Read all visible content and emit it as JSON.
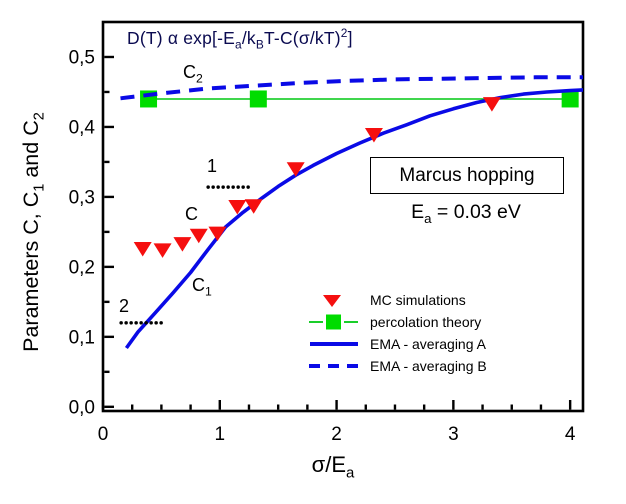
{
  "formula": {
    "p1": "D(T) α exp[-E",
    "s1": "a",
    "p2": "/k",
    "s2": "B",
    "p3": "T-C(σ/kT)",
    "sup": "2",
    "p4": "]"
  },
  "y_axis": {
    "t1": "Parameters C, C",
    "s1": "1",
    "t2": " and C",
    "s2": "2"
  },
  "x_axis": {
    "t1": "σ/E",
    "s1": "a"
  },
  "plot_labels": {
    "c2_t": "C",
    "c2_s": "2",
    "c": "C",
    "c1_t": "C",
    "c1_s": "1",
    "n1": "1",
    "n2": "2"
  },
  "info_box": {
    "title": "Marcus hopping",
    "ea_t1": "E",
    "ea_s1": "a",
    "ea_t2": " = 0.03 eV"
  },
  "legend": {
    "items": [
      {
        "label": "MC simulations",
        "symbol": "triangle-down"
      },
      {
        "label": "percolation theory",
        "symbol": "square-with-line"
      },
      {
        "label": "EMA - averaging A",
        "symbol": "solid-line"
      },
      {
        "label": "EMA - averaging B",
        "symbol": "dashed-line"
      }
    ]
  },
  "colors": {
    "mc": "#f50f0f",
    "perc": "#00dc00",
    "perc_line": "#00c812",
    "ema": "#0a0ae6",
    "frame": "#000000",
    "formula": "#0a0a50"
  },
  "chart_data": {
    "type": "line+scatter",
    "title": "D(T) α exp[-Ea/kBT-C(σ/kT)2]",
    "xlabel": "σ/Ea",
    "ylabel": "Parameters C, C1 and C2",
    "xlim": [
      0,
      4.11
    ],
    "ylim": [
      -0.006,
      0.55
    ],
    "grid": false,
    "legend_position": "lower right",
    "x_major_ticks": [
      {
        "v": 0,
        "label": "0"
      },
      {
        "v": 1,
        "label": "1"
      },
      {
        "v": 2,
        "label": "2"
      },
      {
        "v": 3,
        "label": "3"
      },
      {
        "v": 4,
        "label": "4"
      }
    ],
    "y_major_ticks": [
      {
        "v": 0.0,
        "label": "0,0"
      },
      {
        "v": 0.1,
        "label": "0,1"
      },
      {
        "v": 0.2,
        "label": "0,2"
      },
      {
        "v": 0.3,
        "label": "0,3"
      },
      {
        "v": 0.4,
        "label": "0,4"
      },
      {
        "v": 0.5,
        "label": "0,5"
      }
    ],
    "x_minor_step": 0.25,
    "y_minor_step": 0.05,
    "series": [
      {
        "name": "percolation theory",
        "type": "line+scatter",
        "marker": "square",
        "marker_size": 17,
        "color": "#00dc00",
        "line_color": "#00c812",
        "line_width": 1.6,
        "points": [
          [
            0.39,
            0.44
          ],
          [
            1.33,
            0.44
          ],
          [
            4.0,
            0.44
          ]
        ]
      },
      {
        "name": "EMA - averaging B",
        "type": "line",
        "dash": "14 9",
        "color": "#0a0ae6",
        "width": 4,
        "points": [
          [
            0.15,
            0.441
          ],
          [
            0.5,
            0.448
          ],
          [
            0.9,
            0.455
          ],
          [
            1.3,
            0.459
          ],
          [
            1.7,
            0.463
          ],
          [
            2.1,
            0.466
          ],
          [
            2.5,
            0.468
          ],
          [
            2.9,
            0.469
          ],
          [
            3.3,
            0.47
          ],
          [
            3.7,
            0.471
          ],
          [
            4.11,
            0.471
          ]
        ]
      },
      {
        "name": "EMA - averaging A",
        "type": "line",
        "dash": null,
        "color": "#0a0ae6",
        "width": 3.6,
        "points": [
          [
            0.2,
            0.084
          ],
          [
            0.3,
            0.107
          ],
          [
            0.45,
            0.135
          ],
          [
            0.6,
            0.163
          ],
          [
            0.75,
            0.192
          ],
          [
            0.9,
            0.225
          ],
          [
            1.05,
            0.257
          ],
          [
            1.2,
            0.278
          ],
          [
            1.35,
            0.297
          ],
          [
            1.5,
            0.315
          ],
          [
            1.65,
            0.331
          ],
          [
            1.8,
            0.345
          ],
          [
            2.0,
            0.362
          ],
          [
            2.2,
            0.377
          ],
          [
            2.4,
            0.391
          ],
          [
            2.6,
            0.403
          ],
          [
            2.8,
            0.416
          ],
          [
            3.0,
            0.426
          ],
          [
            3.2,
            0.435
          ],
          [
            3.4,
            0.442
          ],
          [
            3.6,
            0.447
          ],
          [
            3.8,
            0.45
          ],
          [
            4.0,
            0.452
          ],
          [
            4.11,
            0.453
          ]
        ]
      },
      {
        "name": "MC simulations",
        "type": "scatter",
        "marker": "triangle-down",
        "marker_size": 18,
        "color": "#f50f0f",
        "points": [
          [
            0.34,
            0.227
          ],
          [
            0.51,
            0.225
          ],
          [
            0.68,
            0.234
          ],
          [
            0.82,
            0.246
          ],
          [
            0.98,
            0.249
          ],
          [
            1.15,
            0.287
          ],
          [
            1.29,
            0.288
          ],
          [
            1.65,
            0.341
          ],
          [
            2.32,
            0.39
          ],
          [
            3.33,
            0.434
          ]
        ]
      }
    ],
    "annotation_lines": [
      {
        "label": "1",
        "y": 0.314,
        "x1": 0.9,
        "x2": 1.28
      },
      {
        "label": "2",
        "y": 0.12,
        "x1": 0.155,
        "x2": 0.5
      }
    ]
  }
}
